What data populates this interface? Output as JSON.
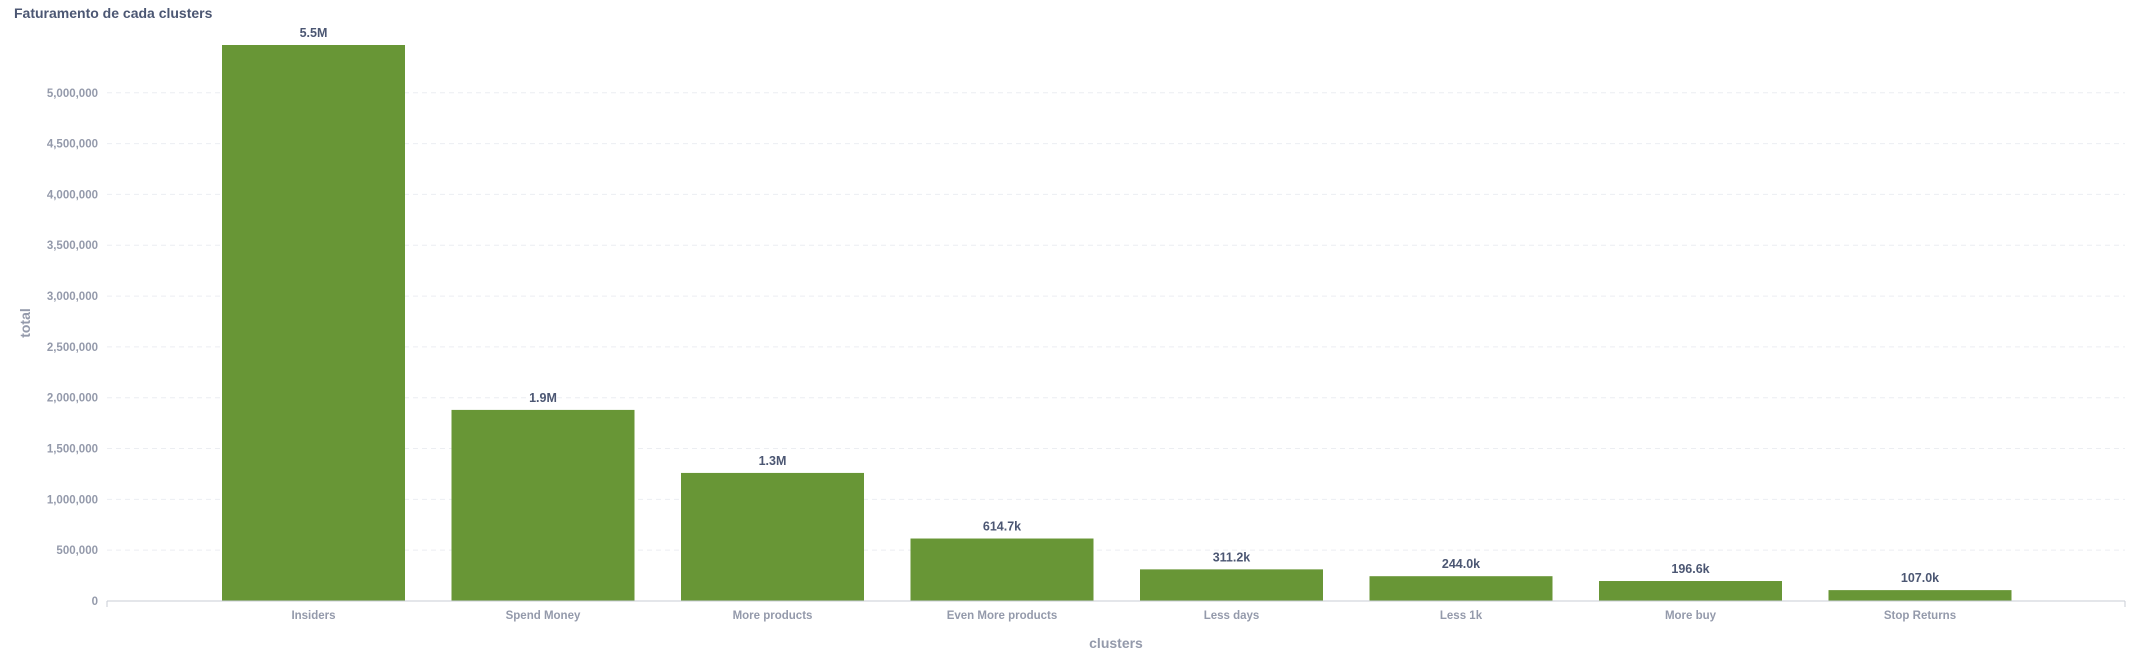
{
  "card": {
    "title": "Faturamento de cada clusters"
  },
  "chart_data": {
    "type": "bar",
    "title": "Faturamento de cada clusters",
    "xlabel": "clusters",
    "ylabel": "total",
    "categories": [
      "Insiders",
      "Spend Money",
      "More products",
      "Even More products",
      "Less days",
      "Less 1k",
      "More buy",
      "Stop Returns"
    ],
    "values": [
      5470000,
      1880000,
      1260000,
      614700,
      311200,
      244000,
      196600,
      107000
    ],
    "data_labels": [
      "5.5M",
      "1.9M",
      "1.3M",
      "614.7k",
      "311.2k",
      "244.0k",
      "196.6k",
      "107.0k"
    ],
    "yticks": [
      0,
      500000,
      1000000,
      1500000,
      2000000,
      2500000,
      3000000,
      3500000,
      4000000,
      4500000,
      5000000
    ],
    "ytick_labels": [
      "0",
      "500,000",
      "1,000,000",
      "1,500,000",
      "2,000,000",
      "2,500,000",
      "3,000,000",
      "3,500,000",
      "4,000,000",
      "4,500,000",
      "5,000,000"
    ],
    "ylim": [
      0,
      5470000
    ],
    "grid": true,
    "bar_color": "#689636"
  }
}
